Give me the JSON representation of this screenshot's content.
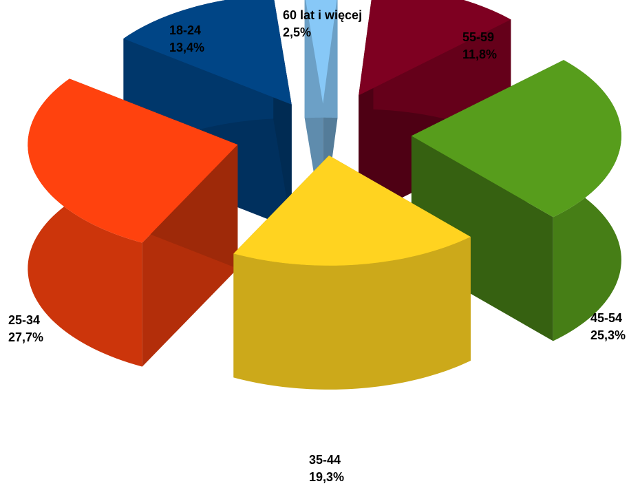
{
  "chart_data": {
    "type": "pie",
    "title": "",
    "slices": [
      {
        "label": "60 lat i więcej",
        "value_label": "2,5%",
        "value": 2.5,
        "color": "#87c8f7"
      },
      {
        "label": "55-59",
        "value_label": "11,8%",
        "value": 11.8,
        "color": "#7e0021"
      },
      {
        "label": "45-54",
        "value_label": "25,3%",
        "value": 25.3,
        "color": "#579d1c"
      },
      {
        "label": "35-44",
        "value_label": "19,3%",
        "value": 19.3,
        "color": "#ffd320"
      },
      {
        "label": "25-34",
        "value_label": "27,7%",
        "value": 27.7,
        "color": "#ff420e"
      },
      {
        "label": "18-24",
        "value_label": "13,4%",
        "value": 13.4,
        "color": "#004586"
      }
    ],
    "exploded": true,
    "three_d": true,
    "legend": "none"
  }
}
